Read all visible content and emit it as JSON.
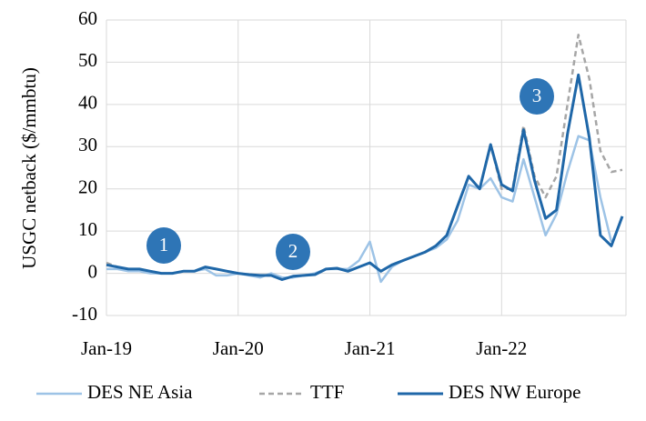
{
  "chart_data": {
    "type": "line",
    "y_label": "USGC netback ($/mmbtu)",
    "categories": [
      "Jan-19",
      null,
      null,
      null,
      null,
      null,
      null,
      null,
      null,
      null,
      null,
      null,
      "Jan-20",
      null,
      null,
      null,
      null,
      null,
      null,
      null,
      null,
      null,
      null,
      null,
      "Jan-21",
      null,
      null,
      null,
      null,
      null,
      null,
      null,
      null,
      null,
      null,
      null,
      "Jan-22",
      null,
      null,
      null,
      null,
      null,
      null,
      null,
      null,
      null,
      null,
      null
    ],
    "series": [
      {
        "name": "DES NE Asia",
        "color": "#9dc3e6",
        "dash": false,
        "values": [
          1,
          1,
          0.5,
          0.5,
          0,
          0,
          0,
          0.5,
          0.5,
          1,
          -0.5,
          -0.5,
          0,
          -0.5,
          -1,
          0,
          -1,
          -1,
          -0.5,
          0,
          1,
          1,
          1,
          3,
          7.5,
          -2,
          1.5,
          3,
          4,
          5,
          6,
          8,
          12.5,
          21,
          20,
          22.5,
          18,
          17,
          27,
          18,
          9,
          14,
          24,
          32.5,
          31.5,
          18,
          7.5,
          null
        ]
      },
      {
        "name": "TTF",
        "color": "#a6a6a6",
        "dash": true,
        "values": [
          2.5,
          1.5,
          1,
          1,
          0.5,
          0,
          0,
          0.5,
          0.5,
          1.5,
          1,
          0.5,
          0,
          -0.3,
          -0.5,
          -0.5,
          -1.5,
          -0.7,
          -0.5,
          -0.3,
          1,
          1.2,
          0.5,
          1.5,
          2.5,
          0.5,
          2,
          3,
          4,
          5,
          6.5,
          9,
          16,
          23,
          20,
          30.5,
          20,
          20,
          35,
          23,
          18,
          23,
          40,
          56.5,
          46,
          29,
          24,
          24.5
        ]
      },
      {
        "name": "DES NW Europe",
        "color": "#1f67a8",
        "dash": false,
        "values": [
          2,
          1.5,
          1,
          1,
          0.5,
          0,
          0,
          0.5,
          0.5,
          1.5,
          1,
          0.5,
          0,
          -0.3,
          -0.5,
          -0.5,
          -1.5,
          -0.7,
          -0.5,
          -0.3,
          1,
          1.2,
          0.5,
          1.5,
          2.5,
          0.5,
          2,
          3,
          4,
          5,
          6.5,
          9,
          16,
          23,
          20,
          30.5,
          21,
          19.5,
          34,
          22,
          13,
          15,
          33,
          47,
          32,
          9,
          6.5,
          13.5
        ]
      }
    ],
    "ylim": [
      -10,
      60
    ],
    "yticks": [
      -10,
      0,
      10,
      20,
      30,
      40,
      50,
      60
    ],
    "grid": true,
    "annotations": [
      "1",
      "2",
      "3"
    ],
    "annotation_color": "#2e75b6",
    "legend": "bottom"
  }
}
